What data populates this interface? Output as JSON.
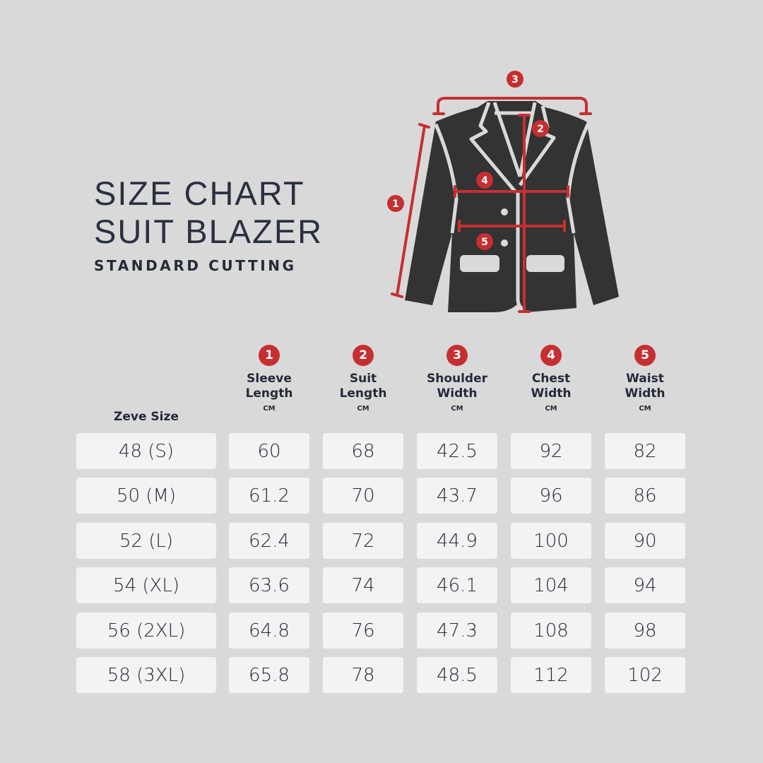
{
  "title_line1": "SIZE CHART",
  "title_line2": "SUIT BLAZER",
  "subtitle": "STANDARD CUTTING",
  "colors": {
    "background": "#d9d9d9",
    "accent": "#c62f32",
    "text": "#232a38",
    "cell": "#f3f3f3",
    "garment": "#333333"
  },
  "diagram": {
    "garment": "blazer-icon",
    "markers": [
      "1",
      "2",
      "3",
      "4",
      "5"
    ]
  },
  "table": {
    "size_header": "Zeve Size",
    "columns": [
      {
        "num": "1",
        "line1": "Sleeve",
        "line2": "Length",
        "unit": "CM"
      },
      {
        "num": "2",
        "line1": "Suit",
        "line2": "Length",
        "unit": "CM"
      },
      {
        "num": "3",
        "line1": "Shoulder",
        "line2": "Width",
        "unit": "CM"
      },
      {
        "num": "4",
        "line1": "Chest",
        "line2": "Width",
        "unit": "CM"
      },
      {
        "num": "5",
        "line1": "Waist",
        "line2": "Width",
        "unit": "CM"
      }
    ],
    "rows": [
      [
        "48 (S)",
        "60",
        "68",
        "42.5",
        "92",
        "82"
      ],
      [
        "50 (M)",
        "61.2",
        "70",
        "43.7",
        "96",
        "86"
      ],
      [
        "52 (L)",
        "62.4",
        "72",
        "44.9",
        "100",
        "90"
      ],
      [
        "54 (XL)",
        "63.6",
        "74",
        "46.1",
        "104",
        "94"
      ],
      [
        "56 (2XL)",
        "64.8",
        "76",
        "47.3",
        "108",
        "98"
      ],
      [
        "58 (3XL)",
        "65.8",
        "78",
        "48.5",
        "112",
        "102"
      ]
    ]
  }
}
